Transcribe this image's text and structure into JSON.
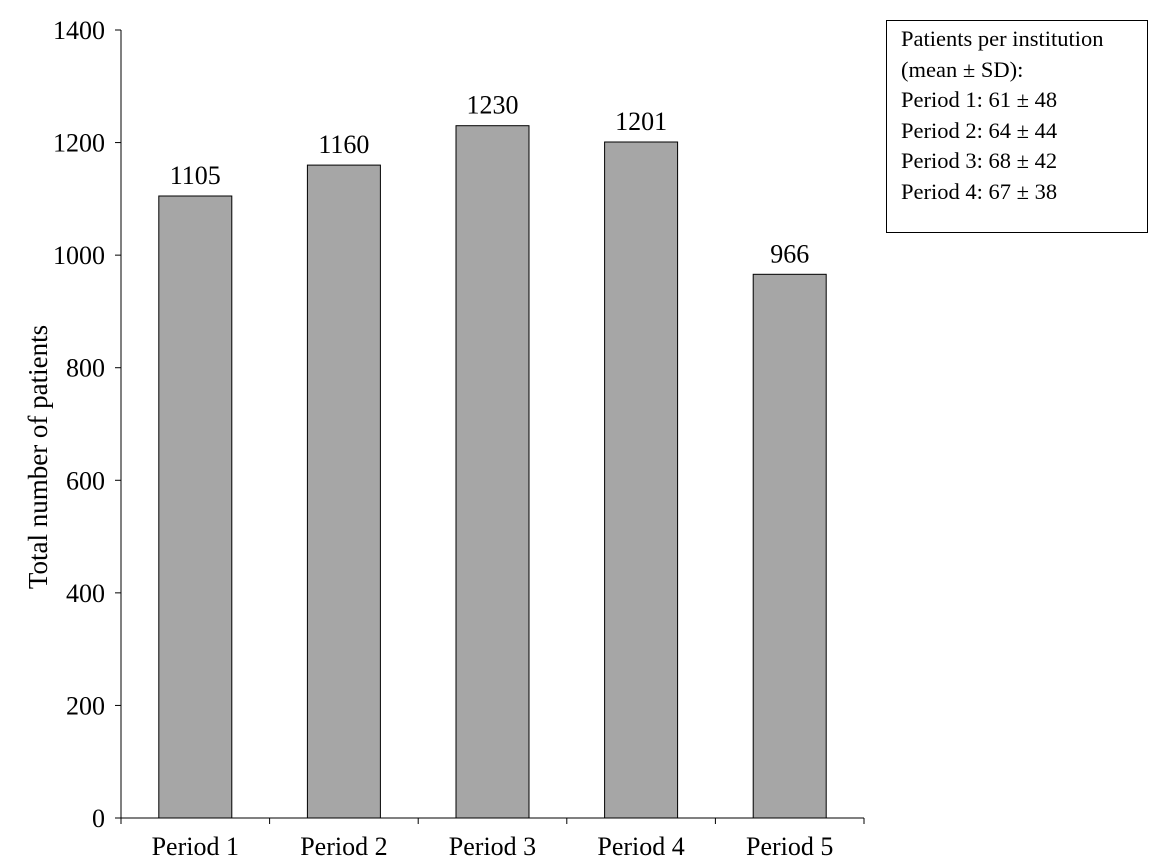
{
  "chart_data": {
    "type": "bar",
    "categories": [
      "Period 1",
      "Period 2",
      "Period 3",
      "Period 4",
      "Period 5"
    ],
    "values": [
      1105,
      1160,
      1230,
      1201,
      966
    ],
    "data_labels": [
      "1105",
      "1160",
      "1230",
      "1201",
      "966"
    ],
    "title": "",
    "xlabel": "",
    "ylabel": "Total number of patients",
    "ylim": [
      0,
      1400
    ],
    "yticks": [
      0,
      200,
      400,
      600,
      800,
      1000,
      1200,
      1400
    ],
    "grid": false,
    "bar_color": "#a6a6a6",
    "bar_edge_color": "#000000",
    "annotation": {
      "placement": "top-right",
      "lines": [
        "Patients per institution",
        "(mean ± SD):",
        "Period 1: 61 ± 48",
        "Period 2: 64 ± 44",
        "Period 3: 68 ± 42",
        "Period 4: 67 ± 38"
      ]
    }
  }
}
